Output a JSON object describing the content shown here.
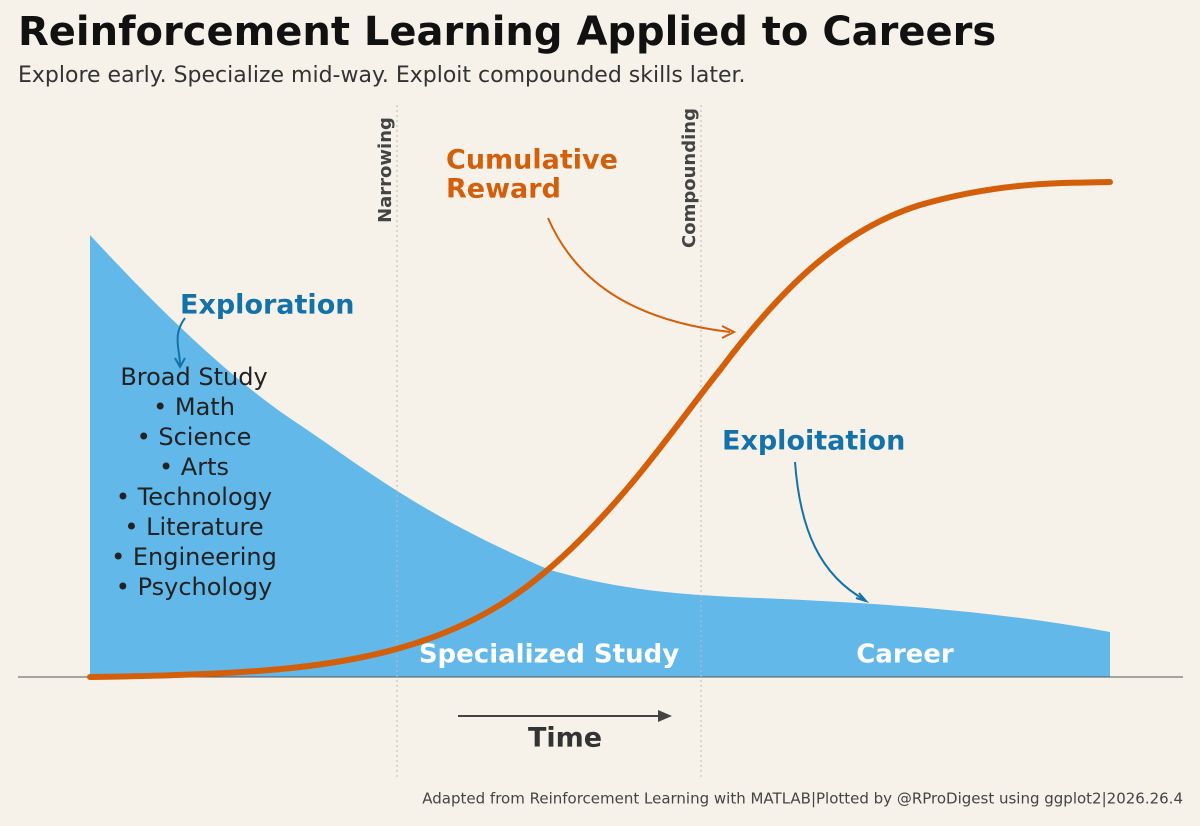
{
  "header": {
    "title": "Reinforcement Learning Applied to Careers",
    "subtitle": "Explore early. Specialize mid-way. Exploit compounded skills later."
  },
  "phases": {
    "narrowing": "Narrowing",
    "compounding": "Compounding"
  },
  "annotations": {
    "cumulative_reward": [
      "Cumulative",
      "Reward"
    ],
    "exploration": "Exploration",
    "broad_study": [
      "Broad Study",
      "• Math",
      "• Science",
      "• Arts",
      "• Technology",
      "• Literature",
      "• Engineering",
      "• Psychology"
    ],
    "exploitation": "Exploitation",
    "specialized_study": "Specialized Study",
    "career": "Career"
  },
  "axis": {
    "x_label": "Time"
  },
  "footer": "Adapted from Reinforcement Learning with MATLAB|Plotted by @RProDigest using ggplot2|2026.26.4"
}
